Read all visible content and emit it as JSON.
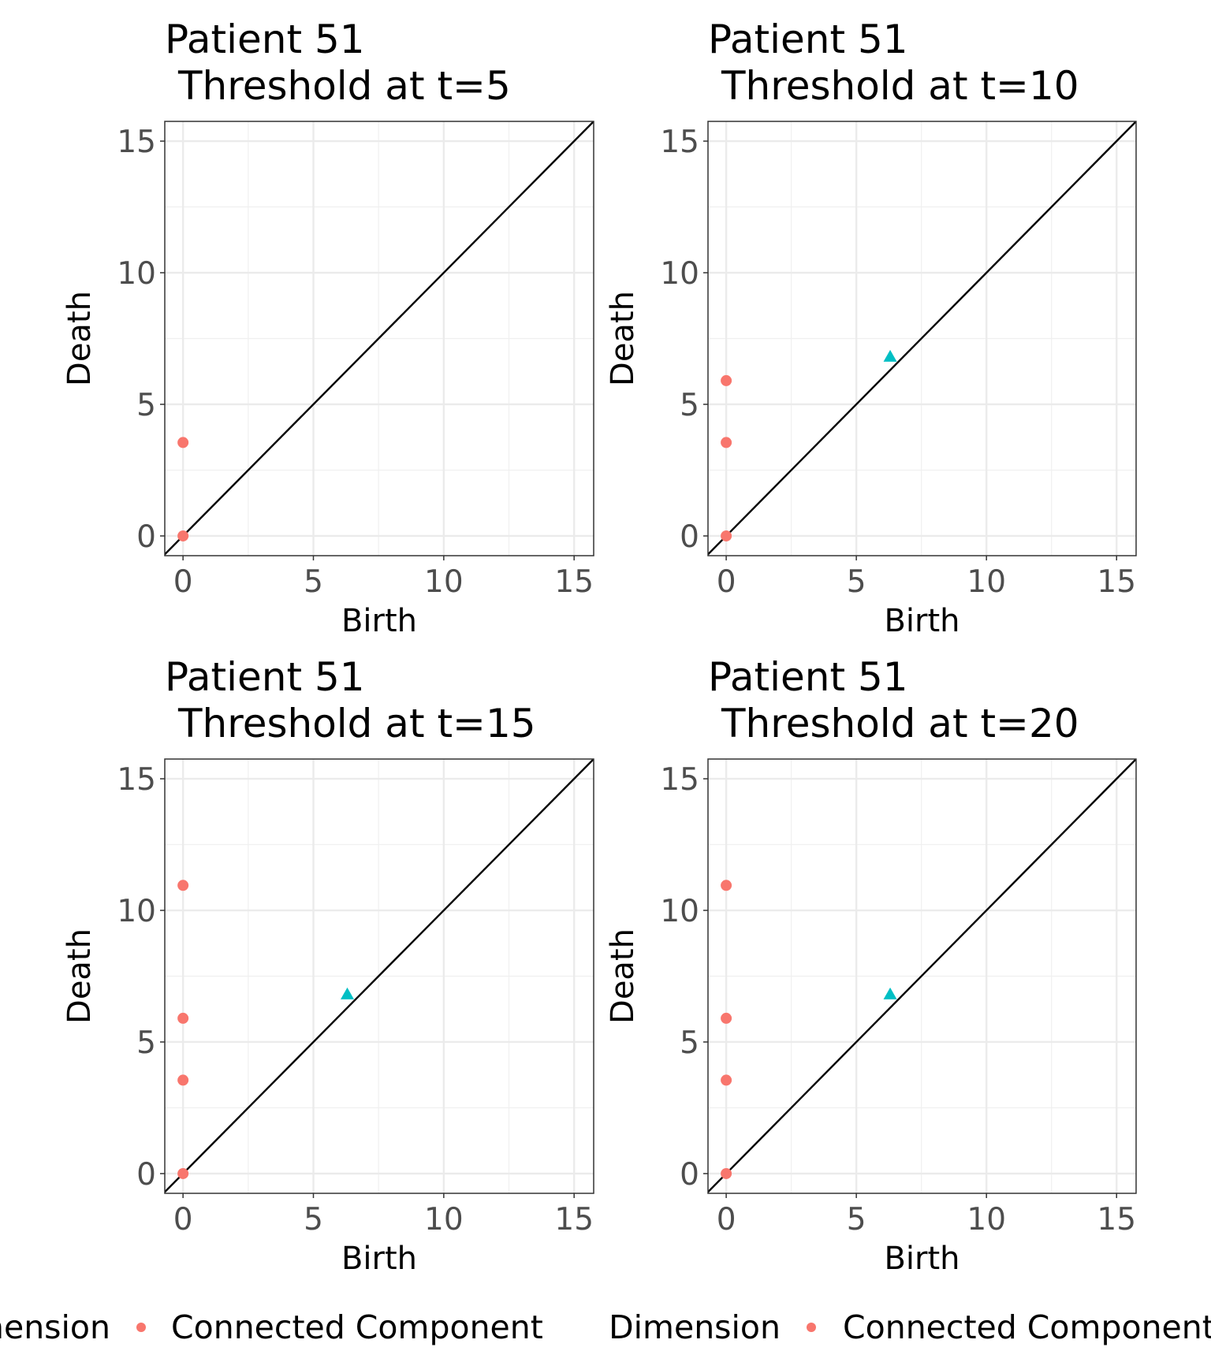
{
  "chart_data": [
    {
      "type": "scatter",
      "title": "Patient 51",
      "subtitle": "Threshold at t=5",
      "x_label": "Birth",
      "y_label": "Death",
      "xlim": [
        -0.7,
        15.75
      ],
      "ylim": [
        -0.75,
        15.75
      ],
      "xticks": [
        0,
        5,
        10,
        15
      ],
      "yticks": [
        0,
        5,
        10,
        15
      ],
      "grid": true,
      "legend_title": "Dimension",
      "series": [
        {
          "name": "Connected Component",
          "color": "#F8766D",
          "marker": "circle",
          "x": [
            0,
            0
          ],
          "values": [
            0,
            3.55
          ]
        }
      ]
    },
    {
      "type": "scatter",
      "title": "Patient 51",
      "subtitle": "Threshold at t=10",
      "x_label": "Birth",
      "y_label": "Death",
      "xlim": [
        -0.7,
        15.75
      ],
      "ylim": [
        -0.75,
        15.75
      ],
      "xticks": [
        0,
        5,
        10,
        15
      ],
      "yticks": [
        0,
        5,
        10,
        15
      ],
      "grid": true,
      "legend_title": "Dimension",
      "series": [
        {
          "name": "Connected Component",
          "color": "#F8766D",
          "marker": "circle",
          "x": [
            0,
            0,
            0
          ],
          "values": [
            0,
            3.55,
            5.9
          ]
        },
        {
          "color": "#00BFC4",
          "marker": "triangle",
          "x": [
            6.3
          ],
          "values": [
            6.8
          ]
        }
      ]
    },
    {
      "type": "scatter",
      "title": "Patient 51",
      "subtitle": "Threshold at t=15",
      "x_label": "Birth",
      "y_label": "Death",
      "xlim": [
        -0.7,
        15.75
      ],
      "ylim": [
        -0.75,
        15.75
      ],
      "xticks": [
        0,
        5,
        10,
        15
      ],
      "yticks": [
        0,
        5,
        10,
        15
      ],
      "grid": true,
      "series": [
        {
          "name": "Connected Component",
          "color": "#F8766D",
          "marker": "circle",
          "x": [
            0,
            0,
            0,
            0
          ],
          "values": [
            0,
            3.55,
            5.9,
            10.95
          ]
        },
        {
          "color": "#00BFC4",
          "marker": "triangle",
          "x": [
            6.3
          ],
          "values": [
            6.8
          ]
        }
      ]
    },
    {
      "type": "scatter",
      "title": "Patient 51",
      "subtitle": "Threshold at t=20",
      "x_label": "Birth",
      "y_label": "Death",
      "xlim": [
        -0.7,
        15.75
      ],
      "ylim": [
        -0.75,
        15.75
      ],
      "xticks": [
        0,
        5,
        10,
        15
      ],
      "yticks": [
        0,
        5,
        10,
        15
      ],
      "grid": true,
      "series": [
        {
          "name": "Connected Component",
          "color": "#F8766D",
          "marker": "circle",
          "x": [
            0,
            0,
            0,
            0
          ],
          "values": [
            0,
            3.55,
            5.9,
            10.95
          ]
        },
        {
          "color": "#00BFC4",
          "marker": "triangle",
          "x": [
            6.3
          ],
          "values": [
            6.8
          ]
        }
      ]
    }
  ]
}
